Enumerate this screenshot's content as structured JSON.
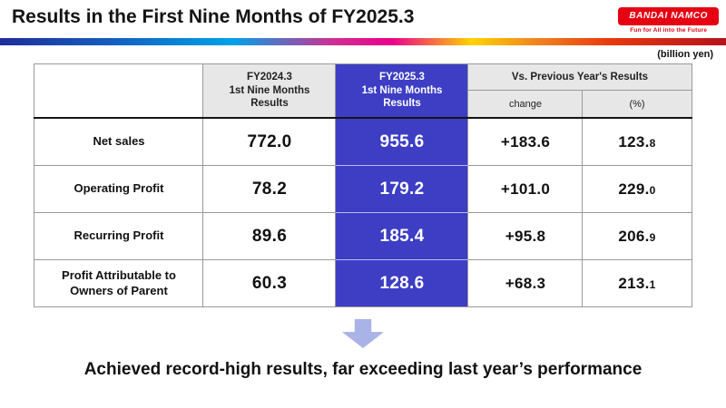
{
  "header": {
    "title": "Results in the First Nine Months of FY2025.3",
    "logo_text": "BANDAI NAMCO",
    "logo_tagline": "Fun for All into the Future"
  },
  "unit_note": "(billion yen)",
  "table": {
    "col_fy2024": "FY2024.3\n1st Nine Months\nResults",
    "col_fy2025": "FY2025.3\n1st Nine Months\nResults",
    "col_vs": "Vs. Previous Year's Results",
    "col_change": "change",
    "col_pct": "(%)",
    "rows": [
      {
        "label": "Net sales",
        "fy2024": "772.0",
        "fy2025": "955.6",
        "change": "+183.6",
        "pct": "123.8"
      },
      {
        "label": "Operating Profit",
        "fy2024": "78.2",
        "fy2025": "179.2",
        "change": "+101.0",
        "pct": "229.0"
      },
      {
        "label": "Recurring Profit",
        "fy2024": "89.6",
        "fy2025": "185.4",
        "change": "+95.8",
        "pct": "206.9"
      },
      {
        "label": "Profit Attributable to Owners of Parent",
        "fy2024": "60.3",
        "fy2025": "128.6",
        "change": "+68.3",
        "pct": "213.1"
      }
    ]
  },
  "conclusion": "Achieved record-high results, far exceeding last year’s performance",
  "colors": {
    "highlight_blue": "#3d3ec4",
    "header_gray": "#e7e7e7",
    "arrow_blue": "#a9b3e8",
    "logo_red": "#e60012"
  }
}
